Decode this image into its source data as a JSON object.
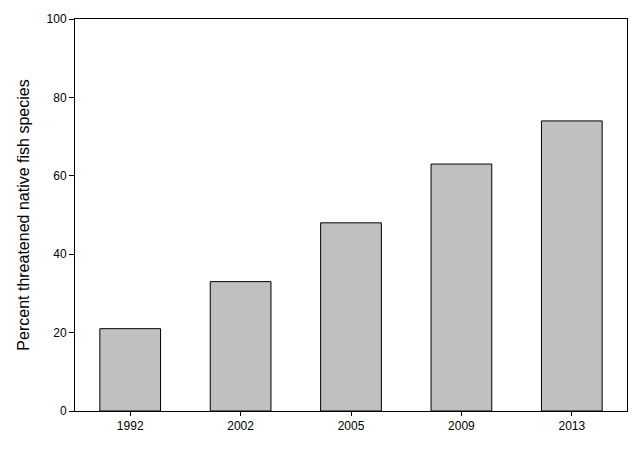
{
  "chart_data": {
    "type": "bar",
    "y_label": "Percent threatened native fish species",
    "categories": [
      "1992",
      "2002",
      "2005",
      "2009",
      "2013"
    ],
    "values": [
      21,
      33,
      48,
      63,
      74
    ],
    "color": "#c0c0c0",
    "ylim": [
      0,
      100
    ],
    "yticks": [
      0,
      20,
      40,
      60,
      80,
      100
    ],
    "grid": false
  }
}
